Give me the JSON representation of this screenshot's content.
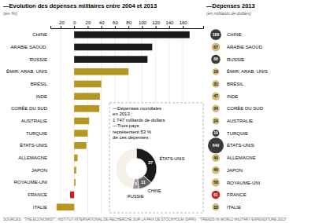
{
  "chart_data": [
    {
      "type": "bar",
      "orientation": "horizontal",
      "title": "—Evolution des dépenses militaires entre 2004 et 2013",
      "subtitle": "(en %)",
      "categories": [
        "CHINE",
        "ARABIE SAOUD.",
        "RUSSIE",
        "ÉMIR. ARAB. UNIS",
        "BRÉSIL",
        "INDE",
        "CORÉE DU SUD",
        "AUSTRALIE",
        "TURQUIE",
        "ÉTATS-UNIS",
        "ALLEMAGNE",
        "JAPON",
        "ROYAUME-UNI",
        "FRANCE",
        "ITALIE"
      ],
      "values": [
        170,
        115,
        108,
        80,
        40,
        38,
        37,
        22,
        20,
        18,
        5,
        3,
        2,
        -6,
        -26
      ],
      "colors": [
        "#1a1a1a",
        "#1a1a1a",
        "#1a1a1a",
        "#b5961e",
        "#b5961e",
        "#b5961e",
        "#b5961e",
        "#b5961e",
        "#b5961e",
        "#b5961e",
        "#b5961e",
        "#b5961e",
        "#b5961e",
        "#cc2222",
        "#b5961e"
      ],
      "xlim": [
        -35,
        190
      ],
      "xticks": [
        -20,
        0,
        20,
        40,
        60,
        80,
        100,
        120,
        140,
        160
      ],
      "grid": true,
      "annotations": [
        "—Dépenses mondiales",
        "en 2013 :",
        "1 747 milliards de dollars",
        "—Trois pays",
        "représentent 53 %",
        "de ces dépenses :"
      ],
      "source": "SOURCES : \"THE ECONOMIST\", INSTITUT INTERNATIONAL DE RECHERCHE SUR LA PAIX DE STOCKHOLM (SIPRI) : \"TRENDS IN WORLD MILITARY EXPENDITURE 2013\""
    },
    {
      "type": "bubble",
      "title": "—Dépenses 2013",
      "subtitle": "(en milliards de dollars)",
      "categories": [
        "CHINE",
        "ARABIE SAOUD.",
        "RUSSIE",
        "ÉMIR. ARAB. UNIS",
        "BRÉSIL",
        "INDE",
        "CORÉE DU SUD",
        "AUSTRALIE",
        "TURQUIE",
        "ÉTATS-UNIS",
        "ALLEMAGNE",
        "JAPON",
        "ROYAUME-UNI",
        "FRANCE",
        "ITALIE"
      ],
      "values": [
        188,
        67,
        88,
        19,
        31,
        47,
        34,
        24,
        19,
        640,
        49,
        49,
        58,
        61,
        33
      ],
      "colors": [
        "#3a3a3a",
        "#d4bc7a",
        "#3a3a3a",
        "#d4bc7a",
        "#d4bc7a",
        "#d4bc7a",
        "#d4bc7a",
        "#d4bc7a",
        "#3a3a3a",
        "#3a3a3a",
        "#d4bc7a",
        "#d4bc7a",
        "#d4bc7a",
        "#cc2222",
        "#d4bc7a"
      ],
      "data_labels": true
    },
    {
      "type": "pie",
      "categories": [
        "ÉTATS-UNIS",
        "CHINE",
        "RUSSIE",
        null
      ],
      "values": [
        37,
        11,
        5,
        47
      ],
      "colors": [
        "#1a1a1a",
        "#666666",
        "#999999",
        "#f5f0e8"
      ],
      "data_labels": true,
      "value_labels": [
        "37",
        "11",
        "5",
        null
      ]
    }
  ]
}
